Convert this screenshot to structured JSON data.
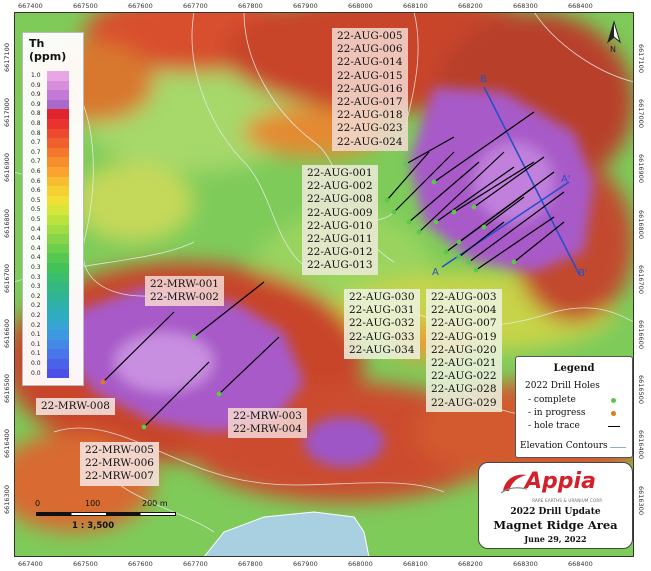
{
  "map": {
    "x_ticks": [
      "667400",
      "667500",
      "667600",
      "667700",
      "667800",
      "667900",
      "668000",
      "668100",
      "668200",
      "668300",
      "668400"
    ],
    "y_ticks": [
      "6617100",
      "6617000",
      "6616900",
      "6616800",
      "6616700",
      "6616600",
      "6616500",
      "6616400",
      "6616300"
    ],
    "north_label": "N",
    "section_labels": {
      "b": "B",
      "b_prime": "B'",
      "a": "A",
      "a_prime": "A'"
    }
  },
  "th_legend": {
    "title": "Th (ppm)",
    "values": [
      "1.0",
      "0.9",
      "0.9",
      "0.9",
      "0.8",
      "0.8",
      "0.8",
      "0.7",
      "0.7",
      "0.7",
      "0.6",
      "0.6",
      "0.6",
      "0.5",
      "0.5",
      "0.5",
      "0.4",
      "0.4",
      "0.4",
      "0.4",
      "0.3",
      "0.3",
      "0.3",
      "0.2",
      "0.2",
      "0.2",
      "0.2",
      "0.1",
      "0.1",
      "0.1",
      "0.0",
      "0.0"
    ],
    "colors": [
      "#e8a6e4",
      "#d98edc",
      "#c27ad6",
      "#a868cc",
      "#e0242e",
      "#e8332e",
      "#ec4a2e",
      "#f0602c",
      "#f4782c",
      "#f68e2c",
      "#f8a42e",
      "#f8bc30",
      "#f6d032",
      "#f0e036",
      "#d6e63a",
      "#bce23e",
      "#a2dc44",
      "#88d44a",
      "#6ece4e",
      "#56c852",
      "#44c25a",
      "#3abd6c",
      "#34b880",
      "#30b496",
      "#2eb0ac",
      "#30acc2",
      "#38a4d4",
      "#3e98e0",
      "#4488e6",
      "#4876ea",
      "#4a62ea",
      "#4c50e6"
    ]
  },
  "labels": {
    "aug_north": [
      "22-AUG-005",
      "22-AUG-006",
      "22-AUG-014",
      "22-AUG-015",
      "22-AUG-016",
      "22-AUG-017",
      "22-AUG-018",
      "22-AUG-023",
      "22-AUG-024"
    ],
    "aug_west": [
      "22-AUG-001",
      "22-AUG-002",
      "22-AUG-008",
      "22-AUG-009",
      "22-AUG-010",
      "22-AUG-011",
      "22-AUG-012",
      "22-AUG-013"
    ],
    "aug_mid": [
      "22-AUG-030",
      "22-AUG-031",
      "22-AUG-032",
      "22-AUG-033",
      "22-AUG-034"
    ],
    "aug_south": [
      "22-AUG-003",
      "22-AUG-004",
      "22-AUG-007",
      "22-AUG-019",
      "22-AUG-020",
      "22-AUG-021",
      "22-AUG-022",
      "22-AUG-028",
      "22-AUG-029"
    ],
    "mrw_001": [
      "22-MRW-001",
      "22-MRW-002"
    ],
    "mrw_008": [
      "22-MRW-008"
    ],
    "mrw_003": [
      "22-MRW-003",
      "22-MRW-004"
    ],
    "mrw_005": [
      "22-MRW-005",
      "22-MRW-006",
      "22-MRW-007"
    ]
  },
  "legend": {
    "title": "Legend",
    "subtitle": "2022 Drill Holes",
    "complete": "- complete",
    "in_progress": "- in progress",
    "hole_trace": "- hole trace",
    "contours": "Elevation Contours",
    "colors": {
      "complete": "#5cc84a",
      "in_progress": "#e07a1a",
      "hole_trace": "#000000"
    }
  },
  "logo": {
    "brand": "Appia",
    "tagline": "RARE EARTHS & URANIUM CORP.",
    "update": "2022 Drill Update",
    "area": "Magnet Ridge Area",
    "date": "June 29, 2022",
    "brand_color": "#d4202a"
  },
  "scale": {
    "ticks": [
      "0",
      "100",
      "200 m"
    ],
    "ratio": "1 : 3,500"
  }
}
